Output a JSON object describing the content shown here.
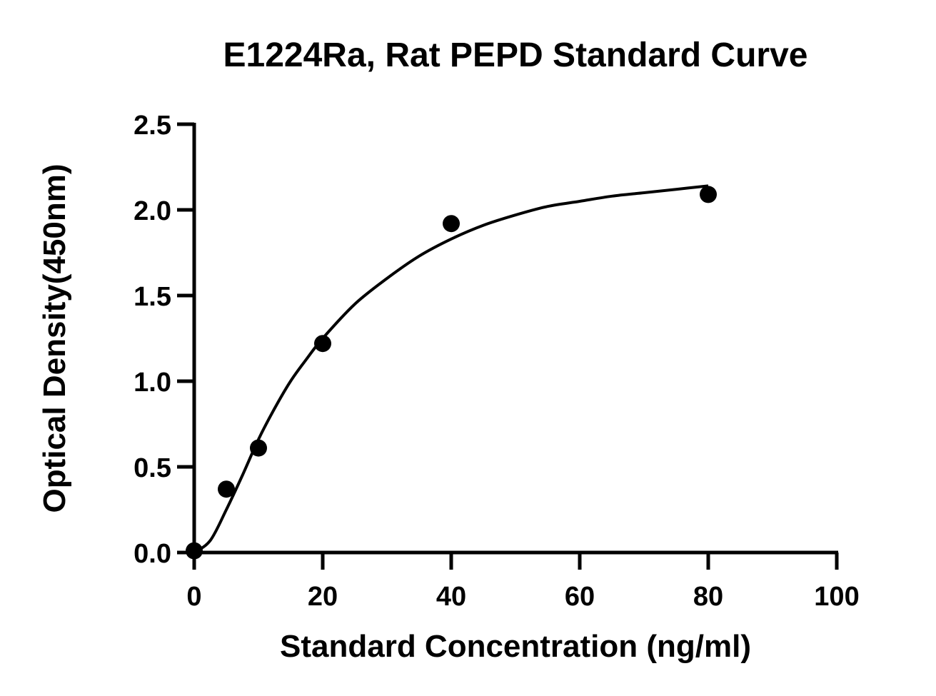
{
  "chart_data": {
    "type": "scatter",
    "title": "E1224Ra, Rat PEPD Standard Curve",
    "xlabel": "Standard Concentration (ng/ml)",
    "ylabel": "Optical Density(450nm)",
    "xlim": [
      0,
      100
    ],
    "ylim": [
      0,
      2.5
    ],
    "x_ticks": [
      "0",
      "20",
      "40",
      "60",
      "80",
      "100"
    ],
    "y_ticks": [
      "0.0",
      "0.5",
      "1.0",
      "1.5",
      "2.0",
      "2.5"
    ],
    "grid": false,
    "series": [
      {
        "points": [
          {
            "x": 0,
            "y": 0.01
          },
          {
            "x": 5,
            "y": 0.37
          },
          {
            "x": 10,
            "y": 0.61
          },
          {
            "x": 20,
            "y": 1.22
          },
          {
            "x": 40,
            "y": 1.92
          },
          {
            "x": 80,
            "y": 2.09
          }
        ]
      }
    ],
    "fit_curve": {
      "x": [
        0,
        2.5,
        5,
        7.5,
        10,
        12.5,
        15,
        17.5,
        20,
        25,
        30,
        35,
        40,
        45,
        50,
        55,
        60,
        65,
        70,
        75,
        80
      ],
      "y": [
        0.0,
        0.07,
        0.25,
        0.45,
        0.66,
        0.84,
        1.0,
        1.13,
        1.25,
        1.45,
        1.6,
        1.73,
        1.83,
        1.91,
        1.97,
        2.02,
        2.05,
        2.08,
        2.1,
        2.12,
        2.14
      ]
    }
  }
}
